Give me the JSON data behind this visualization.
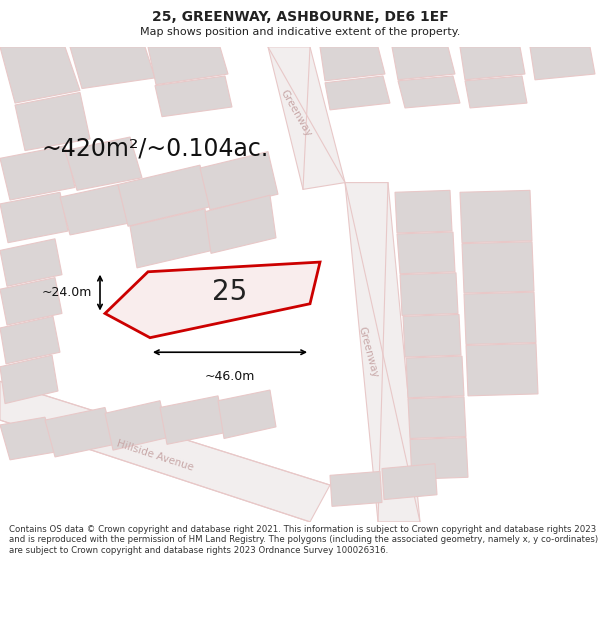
{
  "title": "25, GREENWAY, ASHBOURNE, DE6 1EF",
  "subtitle": "Map shows position and indicative extent of the property.",
  "footer": "Contains OS data © Crown copyright and database right 2021. This information is subject to Crown copyright and database rights 2023 and is reproduced with the permission of HM Land Registry. The polygons (including the associated geometry, namely x, y co-ordinates) are subject to Crown copyright and database rights 2023 Ordnance Survey 100026316.",
  "area_label": "~420m²/~0.104ac.",
  "property_number": "25",
  "dim_width": "~46.0m",
  "dim_height": "~24.0m",
  "map_bg": "#f2eeee",
  "building_fill": "#dbd5d5",
  "building_edge": "#e8c8c8",
  "road_fill": "#f2eeee",
  "road_edge": "#e8c8c8",
  "highlight_fill": "#f9eded",
  "highlight_edge": "#cc0000",
  "road_label_color": "#c8a8a8",
  "text_color": "#222222",
  "footer_color": "#333333",
  "title_fontsize": 10,
  "subtitle_fontsize": 8,
  "footer_fontsize": 6.2
}
